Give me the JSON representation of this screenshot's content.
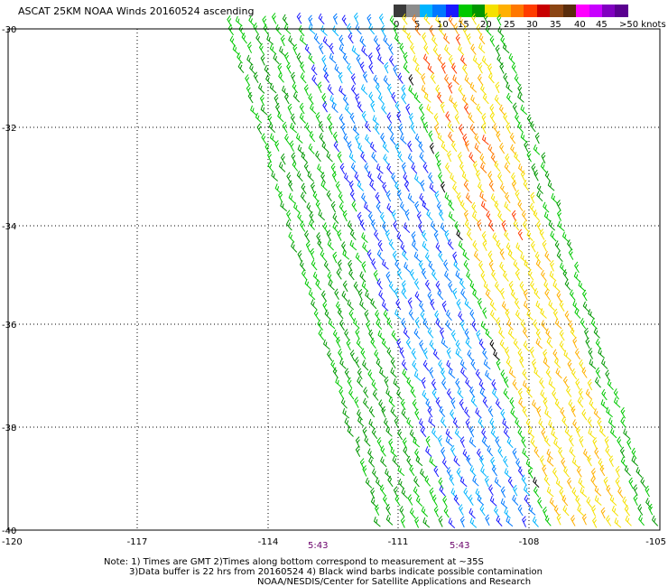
{
  "title": "ASCAT 25KM NOAA Winds 20160524 ascending",
  "colorbar": {
    "labels": [
      "0",
      "5",
      "10",
      "15",
      "20",
      "25",
      "30",
      "35",
      "40",
      "45",
      ">50 knots"
    ],
    "colors": [
      "#3a3a3a",
      "#8c8c8c",
      "#00b4ff",
      "#0078ff",
      "#1a1aff",
      "#00c800",
      "#009600",
      "#f5e100",
      "#ffb000",
      "#ff7800",
      "#ff3c00",
      "#c80000",
      "#8b4513",
      "#5a2d0c",
      "#ff00ff",
      "#c800ff",
      "#8000c0",
      "#5a0090"
    ]
  },
  "axes": {
    "lon_ticks": [
      "-120",
      "-117",
      "-114",
      "-111",
      "-108",
      "-105"
    ],
    "lat_ticks": [
      "-30",
      "-32",
      "-34",
      "-36",
      "-38",
      "-40"
    ]
  },
  "times": [
    "5:43",
    "5:43"
  ],
  "notes": [
    "Note: 1) Times are GMT 2)Times along bottom correspond to measurement at ~35S",
    "3)Data buffer is 22 hrs from 20160524 4) Black wind barbs indicate possible contamination",
    "NOAA/NESDIS/Center for Satellite Applications and Research"
  ]
}
